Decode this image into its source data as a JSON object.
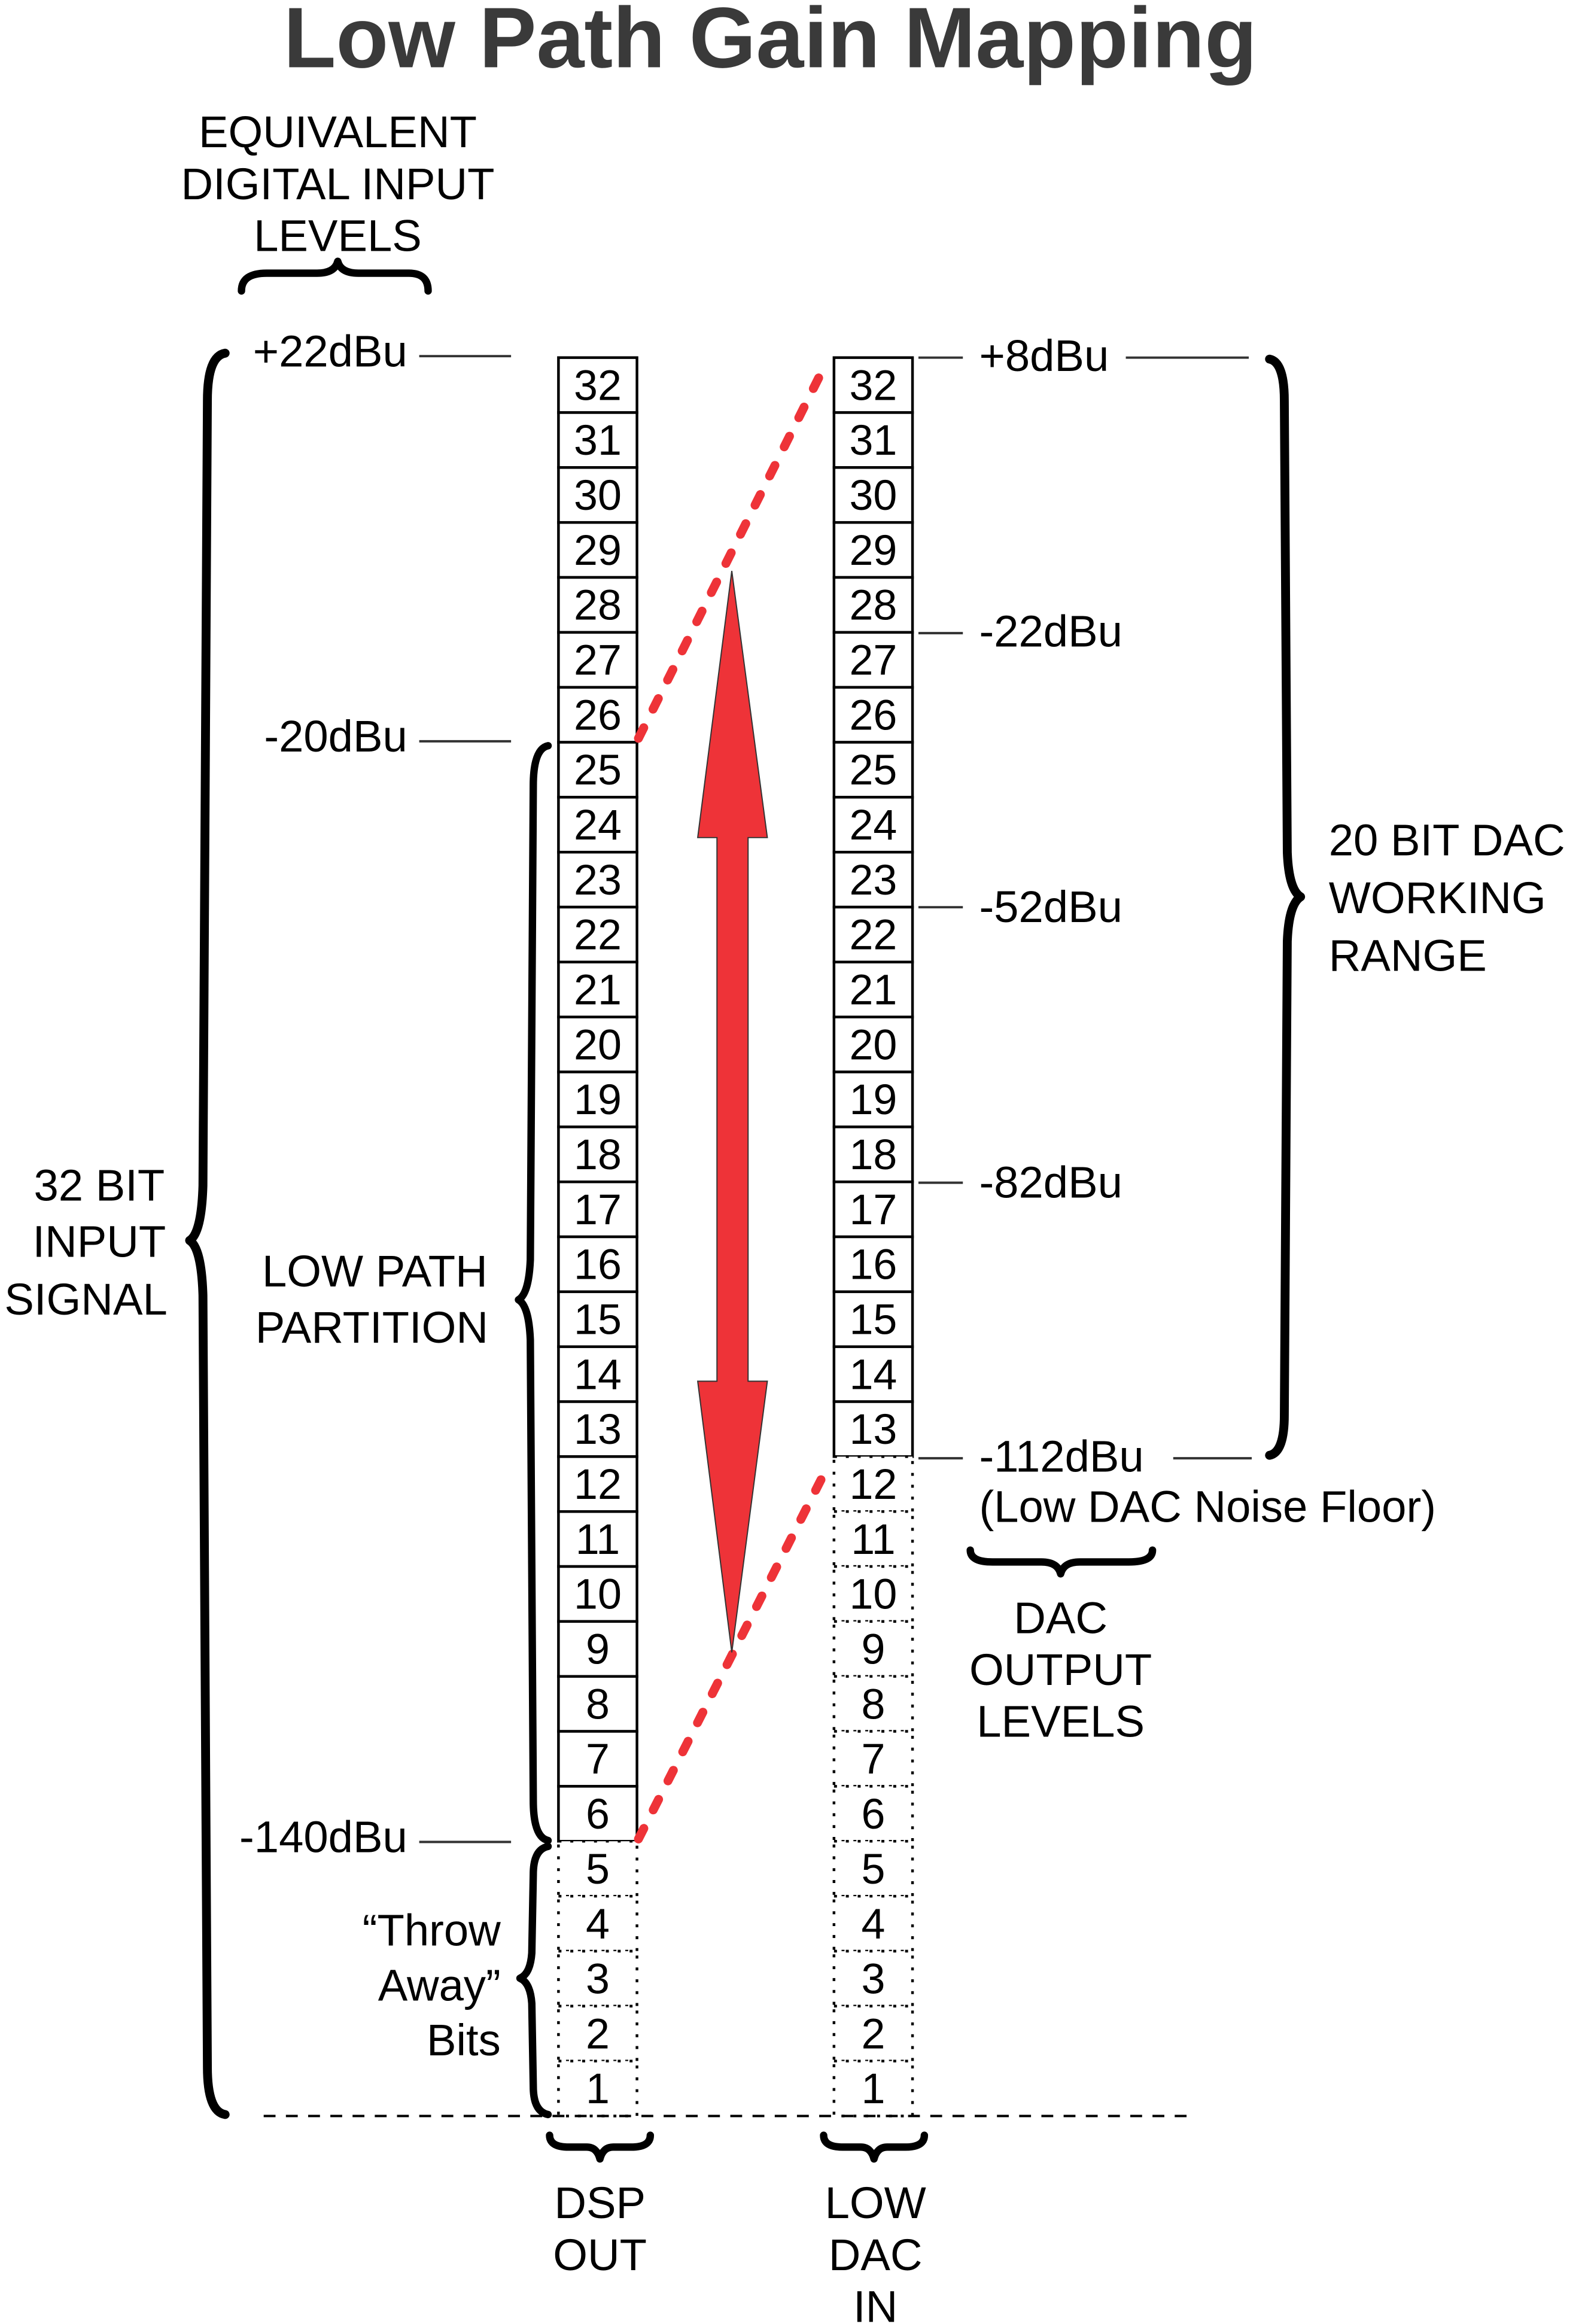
{
  "title": "Low Path Gain Mapping",
  "left_header": [
    "EQUIVALENT",
    "DIGITAL INPUT",
    "LEVELS"
  ],
  "input_levels": [
    "+22dBu",
    "-20dBu",
    "-140dBu"
  ],
  "input_signal_label": [
    "32 BIT",
    "INPUT",
    "SIGNAL"
  ],
  "low_path_label": [
    "LOW PATH",
    "PARTITION"
  ],
  "throw_away_label": [
    "“Throw",
    "Away”",
    "Bits"
  ],
  "dsp_column": {
    "label": [
      "DSP",
      "OUT"
    ],
    "bits_total": 32,
    "solid_from_bit": 6
  },
  "dac_column": {
    "label": [
      "LOW",
      "DAC",
      "IN"
    ],
    "bits_total": 32,
    "solid_from_bit": 13
  },
  "dac_levels": [
    "+8dBu",
    "-22dBu",
    "-52dBu",
    "-82dBu",
    "-112dBu"
  ],
  "noise_floor_note": "(Low DAC Noise Floor)",
  "dac_range_label": [
    "20 BIT DAC",
    "WORKING",
    "RANGE"
  ],
  "dac_output_label": [
    "DAC",
    "OUTPUT",
    "LEVELS"
  ],
  "colors": {
    "mapping": "#ee3338",
    "title": "#3a3a3a"
  }
}
